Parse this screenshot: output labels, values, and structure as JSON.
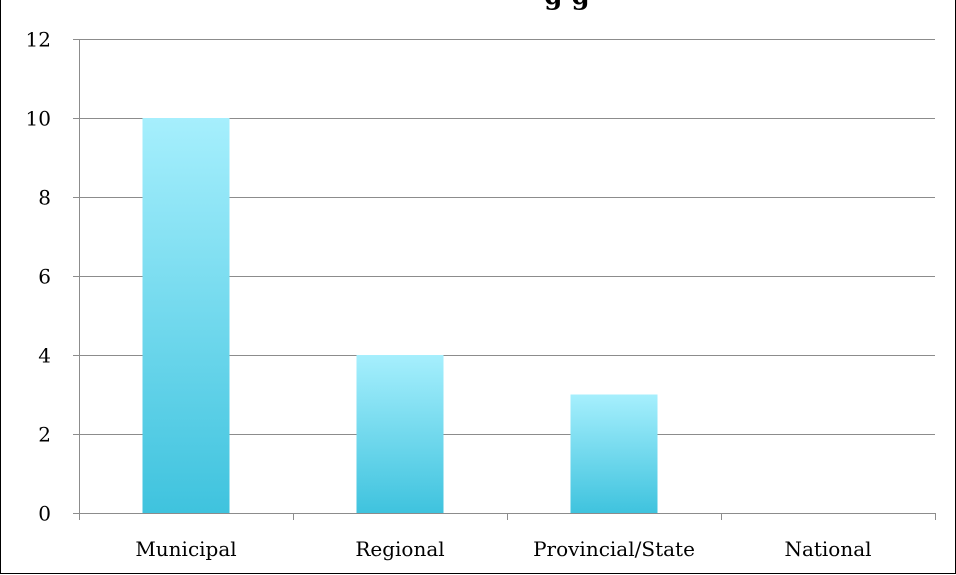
{
  "chart_data": {
    "type": "bar",
    "title": "",
    "title_visible_fragment": "g                          g",
    "xlabel": "",
    "ylabel": "",
    "categories": [
      "Municipal",
      "Regional",
      "Provincial/State",
      "National"
    ],
    "values": [
      10,
      4,
      3,
      0
    ],
    "ylim": [
      0,
      12
    ],
    "yticks": [
      "0",
      "2",
      "4",
      "6",
      "8",
      "10",
      "12"
    ],
    "grid": true,
    "legend": "none",
    "colors": {
      "bar_top": "#a6effd",
      "bar_bottom": "#3fc3de",
      "grid": "#8c8c8c",
      "axis": "#8c8c8c"
    }
  }
}
